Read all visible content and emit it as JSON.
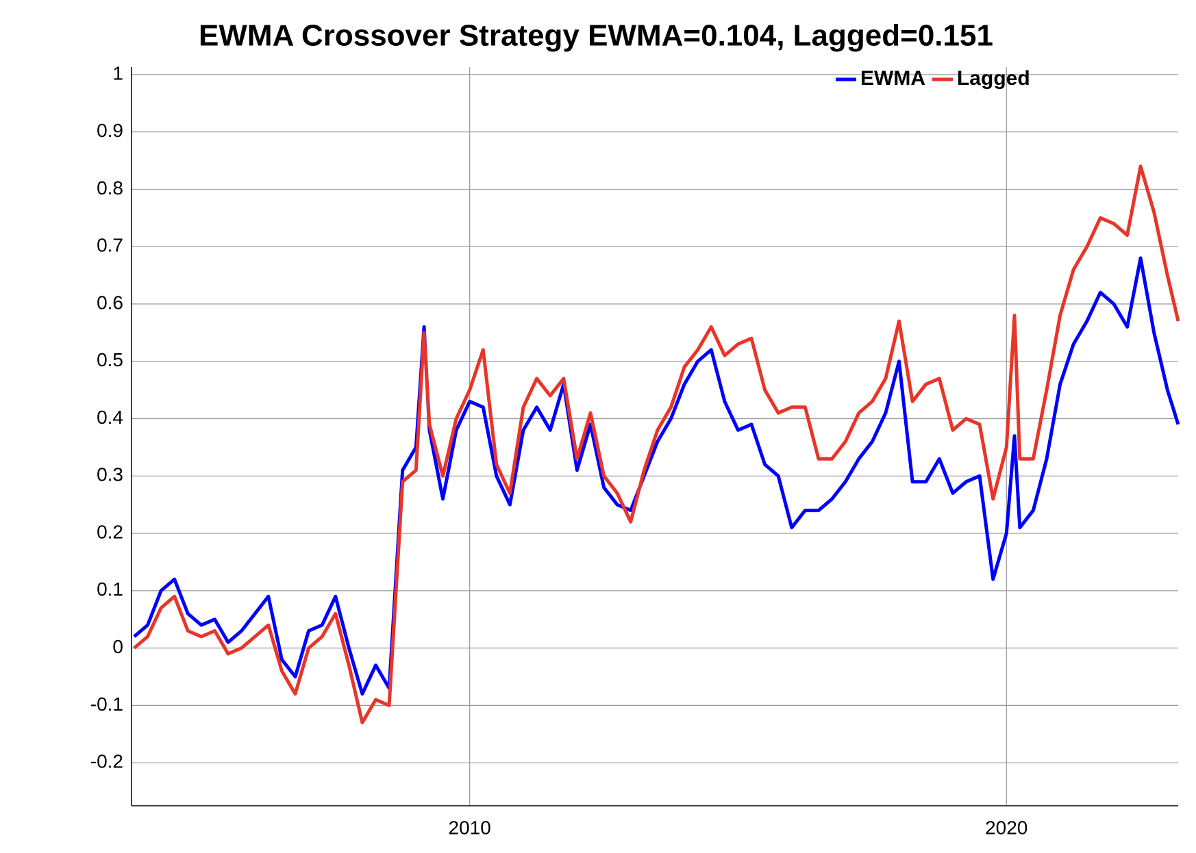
{
  "chart_data": {
    "type": "line",
    "title": "EWMA Crossover Strategy EWMA=0.104, Lagged=0.151",
    "x": [
      2003.75,
      2004.0,
      2004.25,
      2004.5,
      2004.75,
      2005.0,
      2005.25,
      2005.5,
      2005.75,
      2006.0,
      2006.25,
      2006.5,
      2006.75,
      2007.0,
      2007.25,
      2007.5,
      2007.75,
      2008.0,
      2008.25,
      2008.5,
      2008.75,
      2009.0,
      2009.15,
      2009.25,
      2009.5,
      2009.75,
      2010.0,
      2010.25,
      2010.5,
      2010.75,
      2011.0,
      2011.25,
      2011.5,
      2011.75,
      2012.0,
      2012.25,
      2012.5,
      2012.75,
      2013.0,
      2013.25,
      2013.5,
      2013.75,
      2014.0,
      2014.25,
      2014.5,
      2014.75,
      2015.0,
      2015.25,
      2015.5,
      2015.75,
      2016.0,
      2016.25,
      2016.5,
      2016.75,
      2017.0,
      2017.25,
      2017.5,
      2017.75,
      2018.0,
      2018.25,
      2018.5,
      2018.75,
      2019.0,
      2019.25,
      2019.5,
      2019.75,
      2020.0,
      2020.15,
      2020.25,
      2020.5,
      2020.75,
      2021.0,
      2021.25,
      2021.5,
      2021.75,
      2022.0,
      2022.25,
      2022.5,
      2022.75,
      2023.0,
      2023.2
    ],
    "series": [
      {
        "name": "EWMA",
        "color": "#0000ff",
        "values": [
          0.02,
          0.04,
          0.1,
          0.12,
          0.06,
          0.04,
          0.05,
          0.01,
          0.03,
          0.06,
          0.09,
          -0.02,
          -0.05,
          0.03,
          0.04,
          0.09,
          0.0,
          -0.08,
          -0.03,
          -0.07,
          0.31,
          0.35,
          0.56,
          0.38,
          0.26,
          0.38,
          0.43,
          0.42,
          0.3,
          0.25,
          0.38,
          0.42,
          0.38,
          0.46,
          0.31,
          0.39,
          0.28,
          0.25,
          0.24,
          0.3,
          0.36,
          0.4,
          0.46,
          0.5,
          0.52,
          0.43,
          0.38,
          0.39,
          0.32,
          0.3,
          0.21,
          0.24,
          0.24,
          0.26,
          0.29,
          0.33,
          0.36,
          0.41,
          0.5,
          0.29,
          0.29,
          0.33,
          0.27,
          0.29,
          0.3,
          0.12,
          0.2,
          0.37,
          0.21,
          0.24,
          0.33,
          0.46,
          0.53,
          0.57,
          0.62,
          0.6,
          0.56,
          0.68,
          0.55,
          0.45,
          0.39
        ]
      },
      {
        "name": "Lagged",
        "color": "#e8352a",
        "values": [
          0.0,
          0.02,
          0.07,
          0.09,
          0.03,
          0.02,
          0.03,
          -0.01,
          0.0,
          0.02,
          0.04,
          -0.04,
          -0.08,
          0.0,
          0.02,
          0.06,
          -0.03,
          -0.13,
          -0.09,
          -0.1,
          0.29,
          0.31,
          0.55,
          0.39,
          0.3,
          0.4,
          0.45,
          0.52,
          0.32,
          0.27,
          0.42,
          0.47,
          0.44,
          0.47,
          0.33,
          0.41,
          0.3,
          0.27,
          0.22,
          0.31,
          0.38,
          0.42,
          0.49,
          0.52,
          0.56,
          0.51,
          0.53,
          0.54,
          0.45,
          0.41,
          0.42,
          0.42,
          0.33,
          0.33,
          0.36,
          0.41,
          0.43,
          0.47,
          0.57,
          0.43,
          0.46,
          0.47,
          0.38,
          0.4,
          0.39,
          0.26,
          0.35,
          0.58,
          0.33,
          0.33,
          0.45,
          0.58,
          0.66,
          0.7,
          0.75,
          0.74,
          0.72,
          0.84,
          0.76,
          0.65,
          0.57
        ]
      }
    ],
    "xlim": [
      2003.7,
      2023.2
    ],
    "xticks": [
      2010,
      2020
    ],
    "ylim": [
      -0.275,
      1.013
    ],
    "yticks": [
      -0.2,
      -0.1,
      0,
      0.1,
      0.2,
      0.3,
      0.4,
      0.5,
      0.6,
      0.7,
      0.8,
      0.9,
      1
    ],
    "grid": true,
    "legend": "upper right"
  }
}
